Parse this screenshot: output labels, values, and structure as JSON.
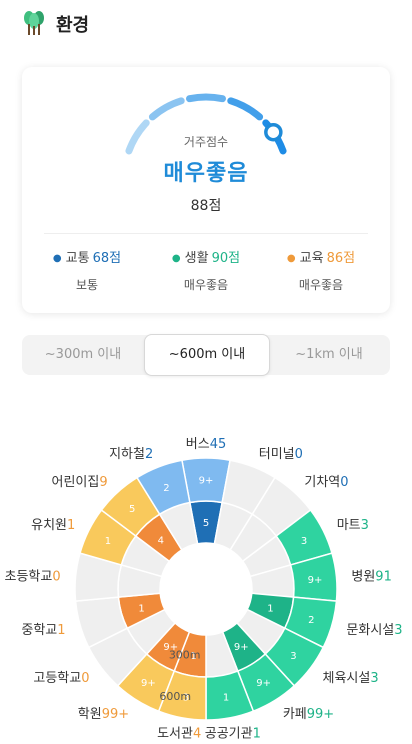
{
  "header": {
    "title": "환경",
    "icon": "tree-icon"
  },
  "score": {
    "caption": "거주점수",
    "grade": "매우좋음",
    "value_text": "88점",
    "value": 88,
    "max": 100,
    "accent": "#1f8bd8"
  },
  "categories": [
    {
      "name": "교통",
      "value": "68점",
      "grade": "보통",
      "color": "#1f6fb5"
    },
    {
      "name": "생활",
      "value": "90점",
      "grade": "매우좋음",
      "color": "#1eb388"
    },
    {
      "name": "교육",
      "value": "86점",
      "grade": "매우좋음",
      "color": "#ef9a3a"
    }
  ],
  "tabs": [
    {
      "label": "~300m 이내",
      "active": false
    },
    {
      "label": "~600m 이내",
      "active": true
    },
    {
      "label": "~1km 이내",
      "active": false
    }
  ],
  "chart_data": {
    "type": "pie",
    "rings": [
      "300m",
      "600m"
    ],
    "segments": [
      {
        "name": "버스",
        "count": "45",
        "group": "transport",
        "inner": "5",
        "outer": "9+"
      },
      {
        "name": "터미널",
        "count": "0",
        "group": "transport",
        "inner": "",
        "outer": ""
      },
      {
        "name": "기차역",
        "count": "0",
        "group": "transport",
        "inner": "",
        "outer": ""
      },
      {
        "name": "마트",
        "count": "3",
        "group": "life",
        "inner": "",
        "outer": "3"
      },
      {
        "name": "병원",
        "count": "91",
        "group": "life",
        "inner": "",
        "outer": "9+"
      },
      {
        "name": "문화시설",
        "count": "3",
        "group": "life",
        "inner": "1",
        "outer": "2"
      },
      {
        "name": "체육시설",
        "count": "3",
        "group": "life",
        "inner": "",
        "outer": "3"
      },
      {
        "name": "카페",
        "count": "99+",
        "group": "life",
        "inner": "9+",
        "outer": "9+"
      },
      {
        "name": "공공기관",
        "count": "1",
        "group": "life",
        "inner": "",
        "outer": "1"
      },
      {
        "name": "도서관",
        "count": "4",
        "group": "edu",
        "inner": "1",
        "outer": "3"
      },
      {
        "name": "학원",
        "count": "99+",
        "group": "edu",
        "inner": "9+",
        "outer": "9+"
      },
      {
        "name": "고등학교",
        "count": "0",
        "group": "edu",
        "inner": "",
        "outer": ""
      },
      {
        "name": "중학교",
        "count": "1",
        "group": "edu",
        "inner": "1",
        "outer": ""
      },
      {
        "name": "초등학교",
        "count": "0",
        "group": "edu",
        "inner": "",
        "outer": ""
      },
      {
        "name": "유치원",
        "count": "1",
        "group": "edu",
        "inner": "",
        "outer": "1"
      },
      {
        "name": "어린이집",
        "count": "9",
        "group": "edu",
        "inner": "4",
        "outer": "5"
      },
      {
        "name": "지하철",
        "count": "2",
        "group": "transport",
        "inner": "",
        "outer": "2"
      }
    ],
    "colors": {
      "transport_inner": "#1f6fb5",
      "transport_outer": "#7fbaf0",
      "life_inner": "#1eb388",
      "life_outer": "#2fd3a0",
      "edu_inner": "#f08a3a",
      "edu_outer": "#f9c95c",
      "empty": "#efefef"
    }
  }
}
